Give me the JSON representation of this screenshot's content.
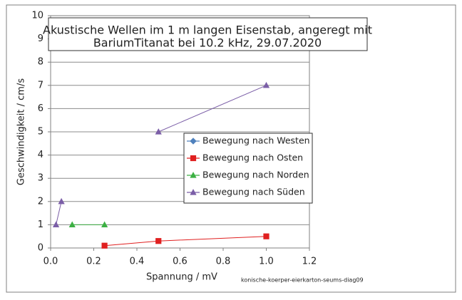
{
  "chart_data": {
    "type": "scatter",
    "title_lines": [
      "Akustische Wellen im 1 m langen  Eisenstab, angeregt mit",
      "BariumTitanat  bei 10.2 kHz, 29.07.2020"
    ],
    "xlabel": "Spannung / mV",
    "ylabel": "Geschwindigkeit / cm/s",
    "xlim": [
      0,
      1.2
    ],
    "ylim": [
      0,
      10
    ],
    "x_ticks": [
      "0.0",
      "0.2",
      "0.4",
      "0.6",
      "0.8",
      "1.0",
      "1.2"
    ],
    "y_ticks": [
      "0",
      "1",
      "2",
      "3",
      "4",
      "5",
      "6",
      "7",
      "8",
      "9",
      "10"
    ],
    "grid": "horizontal",
    "legend_position": "right",
    "series": [
      {
        "name": "Bewegung nach Westen",
        "color": "#4f81bd",
        "marker": "diamond",
        "points": []
      },
      {
        "name": "Bewegung nach Osten",
        "color": "#e02020",
        "marker": "square",
        "points": [
          [
            0.25,
            0.1
          ],
          [
            0.5,
            0.3
          ],
          [
            1.0,
            0.5
          ]
        ]
      },
      {
        "name": "Bewegung nach Norden",
        "color": "#3cb043",
        "marker": "triangle",
        "points": [
          [
            0.1,
            1.0
          ],
          [
            0.25,
            1.0
          ]
        ]
      },
      {
        "name": "Bewegung nach Süden",
        "color": "#7b5ea7",
        "marker": "triangle",
        "points": [
          [
            0.025,
            1.0
          ],
          [
            0.05,
            2.0
          ],
          null,
          [
            0.5,
            5.0
          ],
          [
            1.0,
            7.0
          ]
        ]
      }
    ],
    "credit": "konische-koerper-eierkarton-seums-diag09"
  }
}
